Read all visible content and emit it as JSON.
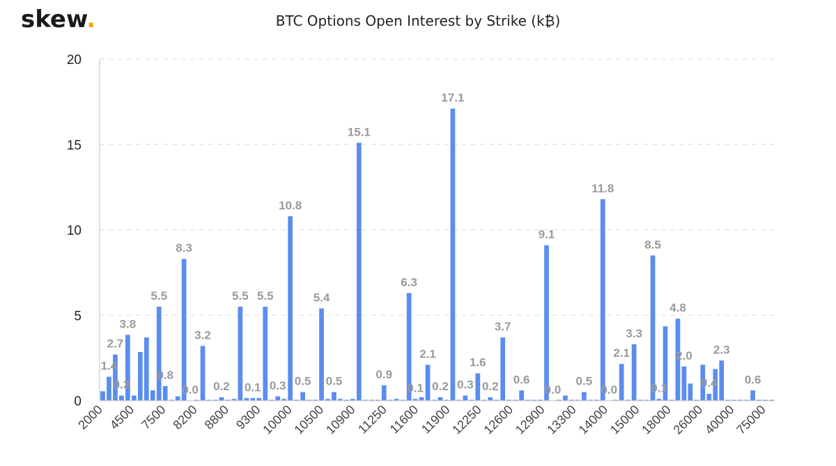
{
  "brand": {
    "name": "skew",
    "dot": "."
  },
  "chart_data": {
    "type": "bar",
    "title": "BTC Options Open Interest by Strike (k₿)",
    "xlabel": "",
    "ylabel": "",
    "ylim": [
      0,
      20
    ],
    "yticks": [
      0,
      5,
      10,
      15,
      20
    ],
    "grid": true,
    "bar_color": "#5b8def",
    "label_color": "#9a9a9a",
    "x_tick_labels": [
      "2000",
      "4500",
      "7500",
      "8200",
      "8800",
      "9300",
      "10000",
      "10500",
      "10900",
      "11250",
      "11600",
      "11900",
      "12250",
      "12600",
      "12900",
      "13300",
      "14000",
      "15000",
      "18000",
      "26000",
      "40000",
      "75000"
    ],
    "values": [
      0.55,
      1.4,
      2.7,
      0.3,
      3.85,
      0.3,
      2.85,
      3.7,
      0.6,
      5.5,
      0.85,
      0.05,
      0.25,
      8.3,
      0.0,
      0.05,
      3.2,
      0.05,
      0.05,
      0.2,
      0.05,
      0.1,
      5.5,
      0.15,
      0.15,
      0.15,
      5.5,
      0.05,
      0.25,
      0.1,
      10.8,
      0.05,
      0.5,
      0.05,
      0.05,
      5.4,
      0.1,
      0.5,
      0.1,
      0.05,
      0.1,
      15.1,
      0.05,
      0.05,
      0.05,
      0.9,
      0.05,
      0.1,
      0.05,
      6.3,
      0.1,
      0.2,
      2.1,
      0.05,
      0.2,
      0.05,
      17.1,
      0.05,
      0.3,
      0.05,
      1.6,
      0.05,
      0.2,
      0.05,
      3.7,
      0.05,
      0.05,
      0.6,
      0.05,
      0.05,
      0.05,
      9.1,
      0.0,
      0.05,
      0.3,
      0.05,
      0.05,
      0.5,
      0.05,
      0.05,
      11.8,
      0.0,
      0.05,
      2.15,
      0.05,
      3.3,
      0.05,
      0.05,
      8.5,
      0.1,
      4.35,
      0.05,
      4.8,
      2.0,
      1.0,
      0.05,
      2.1,
      0.4,
      1.85,
      2.35,
      0.05,
      0.05,
      0.05,
      0.05,
      0.6,
      0.05,
      0.05,
      0.05
    ],
    "data_labels": [
      {
        "i": 1,
        "text": "1.4"
      },
      {
        "i": 2,
        "text": "2.7"
      },
      {
        "i": 3,
        "text": "0.3"
      },
      {
        "i": 4,
        "text": "3.8"
      },
      {
        "i": 9,
        "text": "5.5"
      },
      {
        "i": 10,
        "text": "0.8"
      },
      {
        "i": 13,
        "text": "8.3"
      },
      {
        "i": 14,
        "text": "0.0"
      },
      {
        "i": 16,
        "text": "3.2"
      },
      {
        "i": 19,
        "text": "0.2"
      },
      {
        "i": 22,
        "text": "5.5"
      },
      {
        "i": 24,
        "text": "0.1"
      },
      {
        "i": 26,
        "text": "5.5"
      },
      {
        "i": 28,
        "text": "0.3"
      },
      {
        "i": 30,
        "text": "10.8"
      },
      {
        "i": 32,
        "text": "0.5"
      },
      {
        "i": 35,
        "text": "5.4"
      },
      {
        "i": 37,
        "text": "0.5"
      },
      {
        "i": 41,
        "text": "15.1"
      },
      {
        "i": 45,
        "text": "0.9"
      },
      {
        "i": 49,
        "text": "6.3"
      },
      {
        "i": 50,
        "text": "0.1"
      },
      {
        "i": 52,
        "text": "2.1"
      },
      {
        "i": 54,
        "text": "0.2"
      },
      {
        "i": 56,
        "text": "17.1"
      },
      {
        "i": 58,
        "text": "0.3"
      },
      {
        "i": 60,
        "text": "1.6"
      },
      {
        "i": 62,
        "text": "0.2"
      },
      {
        "i": 64,
        "text": "3.7"
      },
      {
        "i": 67,
        "text": "0.6"
      },
      {
        "i": 71,
        "text": "9.1"
      },
      {
        "i": 72,
        "text": "0.0"
      },
      {
        "i": 77,
        "text": "0.5"
      },
      {
        "i": 80,
        "text": "11.8"
      },
      {
        "i": 81,
        "text": "0.0"
      },
      {
        "i": 83,
        "text": "2.1"
      },
      {
        "i": 85,
        "text": "3.3"
      },
      {
        "i": 88,
        "text": "8.5"
      },
      {
        "i": 89,
        "text": "0.1"
      },
      {
        "i": 92,
        "text": "4.8"
      },
      {
        "i": 93,
        "text": "2.0"
      },
      {
        "i": 97,
        "text": "0.4"
      },
      {
        "i": 99,
        "text": "2.3"
      },
      {
        "i": 104,
        "text": "0.6"
      }
    ]
  }
}
